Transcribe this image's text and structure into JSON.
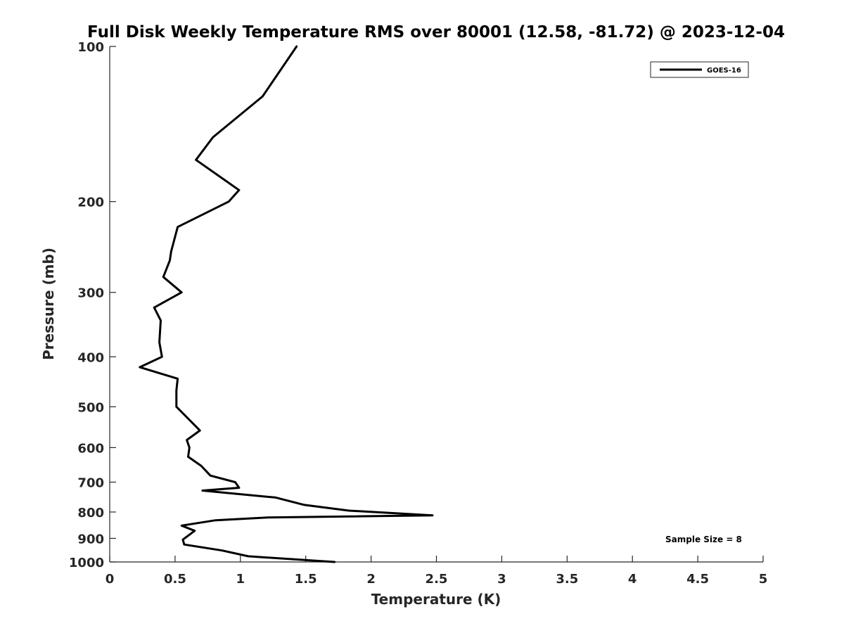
{
  "chart_data": {
    "type": "line",
    "title": "Full Disk Weekly Temperature RMS over 80001 (12.58, -81.72) @ 2023-12-04",
    "xlabel": "Temperature (K)",
    "ylabel": "Pressure (mb)",
    "xlim": [
      0,
      5
    ],
    "ylim": [
      100,
      1000
    ],
    "y_scale": "log",
    "y_reversed": true,
    "grid": false,
    "legend_position": "top-right",
    "x_ticks": [
      "0",
      "0.5",
      "1",
      "1.5",
      "2",
      "2.5",
      "3",
      "3.5",
      "4",
      "4.5",
      "5"
    ],
    "y_ticks": [
      "100",
      "200",
      "300",
      "400",
      "500",
      "600",
      "700",
      "800",
      "900",
      "1000"
    ],
    "series": [
      {
        "name": "GOES-16",
        "color": "#000000",
        "points": [
          [
            1.43,
            100
          ],
          [
            1.17,
            125
          ],
          [
            0.79,
            150
          ],
          [
            0.66,
            166
          ],
          [
            0.99,
            190
          ],
          [
            0.91,
            200
          ],
          [
            0.52,
            224
          ],
          [
            0.47,
            250
          ],
          [
            0.46,
            260
          ],
          [
            0.41,
            280
          ],
          [
            0.55,
            300
          ],
          [
            0.34,
            321
          ],
          [
            0.39,
            340
          ],
          [
            0.38,
            375
          ],
          [
            0.4,
            400
          ],
          [
            0.23,
            419
          ],
          [
            0.52,
            441
          ],
          [
            0.51,
            465
          ],
          [
            0.51,
            500
          ],
          [
            0.69,
            556
          ],
          [
            0.59,
            580
          ],
          [
            0.61,
            600
          ],
          [
            0.6,
            625
          ],
          [
            0.7,
            651
          ],
          [
            0.77,
            680
          ],
          [
            0.96,
            700
          ],
          [
            0.99,
            718
          ],
          [
            0.71,
            727
          ],
          [
            1.27,
            750
          ],
          [
            1.49,
            775
          ],
          [
            1.83,
            795
          ],
          [
            2.47,
            812
          ],
          [
            1.21,
            820
          ],
          [
            0.81,
            830
          ],
          [
            0.55,
            850
          ],
          [
            0.65,
            870
          ],
          [
            0.56,
            905
          ],
          [
            0.57,
            925
          ],
          [
            0.86,
            950
          ],
          [
            1.06,
            975
          ],
          [
            1.72,
            1000
          ]
        ]
      }
    ],
    "annotations": [
      "Sample Size = 8"
    ]
  }
}
